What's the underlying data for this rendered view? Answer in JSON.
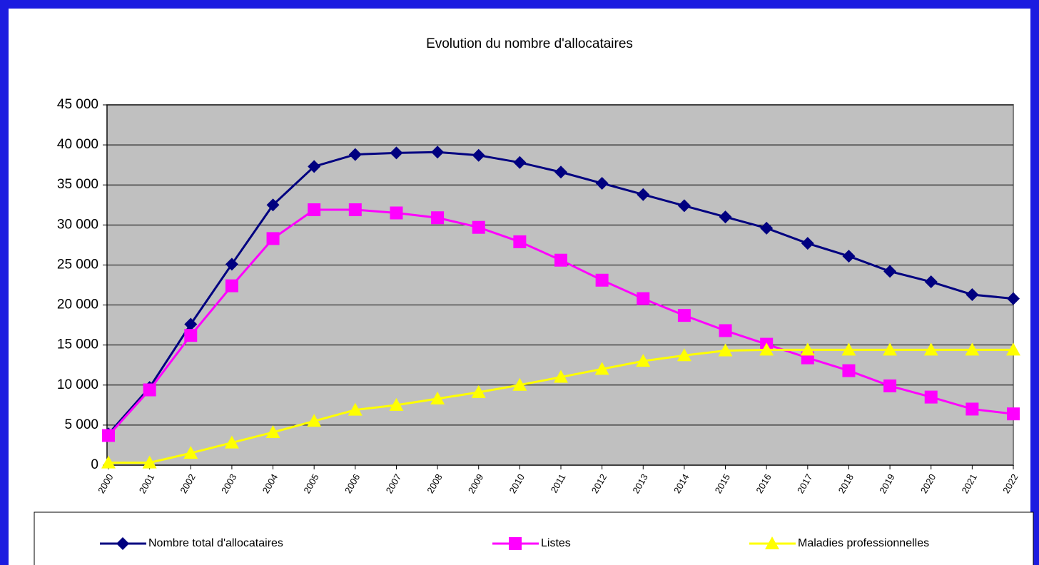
{
  "chart_data": {
    "type": "line",
    "title": "Evolution du nombre d'allocataires",
    "categories": [
      "2000",
      "2001",
      "2002",
      "2003",
      "2004",
      "2005",
      "2006",
      "2007",
      "2008",
      "2009",
      "2010",
      "2011",
      "2012",
      "2013",
      "2014",
      "2015",
      "2016",
      "2017",
      "2018",
      "2019",
      "2020",
      "2021",
      "2022"
    ],
    "series": [
      {
        "name": "Nombre total d'allocataires",
        "color": "#000080",
        "marker": "diamond",
        "values": [
          3900,
          9700,
          17600,
          25100,
          32500,
          37300,
          38800,
          39000,
          39100,
          38700,
          37800,
          36600,
          35200,
          33800,
          32400,
          31000,
          29600,
          27700,
          26100,
          24200,
          22900,
          21300,
          20800
        ]
      },
      {
        "name": "Listes",
        "color": "#ff00ff",
        "marker": "square",
        "values": [
          3700,
          9400,
          16200,
          22400,
          28300,
          31900,
          31900,
          31500,
          30900,
          29700,
          27900,
          25600,
          23100,
          20800,
          18700,
          16800,
          15100,
          13400,
          11800,
          9900,
          8500,
          7000,
          6400
        ]
      },
      {
        "name": "Maladies professionnelles",
        "color": "#ffff00",
        "marker": "triangle",
        "values": [
          300,
          300,
          1500,
          2800,
          4100,
          5500,
          6900,
          7500,
          8300,
          9100,
          10000,
          11000,
          12000,
          13000,
          13700,
          14300,
          14400,
          14400,
          14400,
          14400,
          14400,
          14400,
          14400
        ]
      }
    ],
    "ylim": [
      0,
      45000
    ],
    "yticks": [
      0,
      {
        "value": 5000,
        "label": "5 000"
      },
      {
        "value": 10000,
        "label": "10 000"
      },
      {
        "value": 15000,
        "label": "15 000"
      },
      {
        "value": 20000,
        "label": "20 000"
      },
      {
        "value": 25000,
        "label": "25 000"
      },
      {
        "value": 30000,
        "label": "30 000"
      },
      {
        "value": 35000,
        "label": "35 000"
      },
      {
        "value": 40000,
        "label": "40 000"
      },
      {
        "value": 45000,
        "label": "45 000"
      }
    ],
    "grid": true,
    "legend": "bottom"
  }
}
